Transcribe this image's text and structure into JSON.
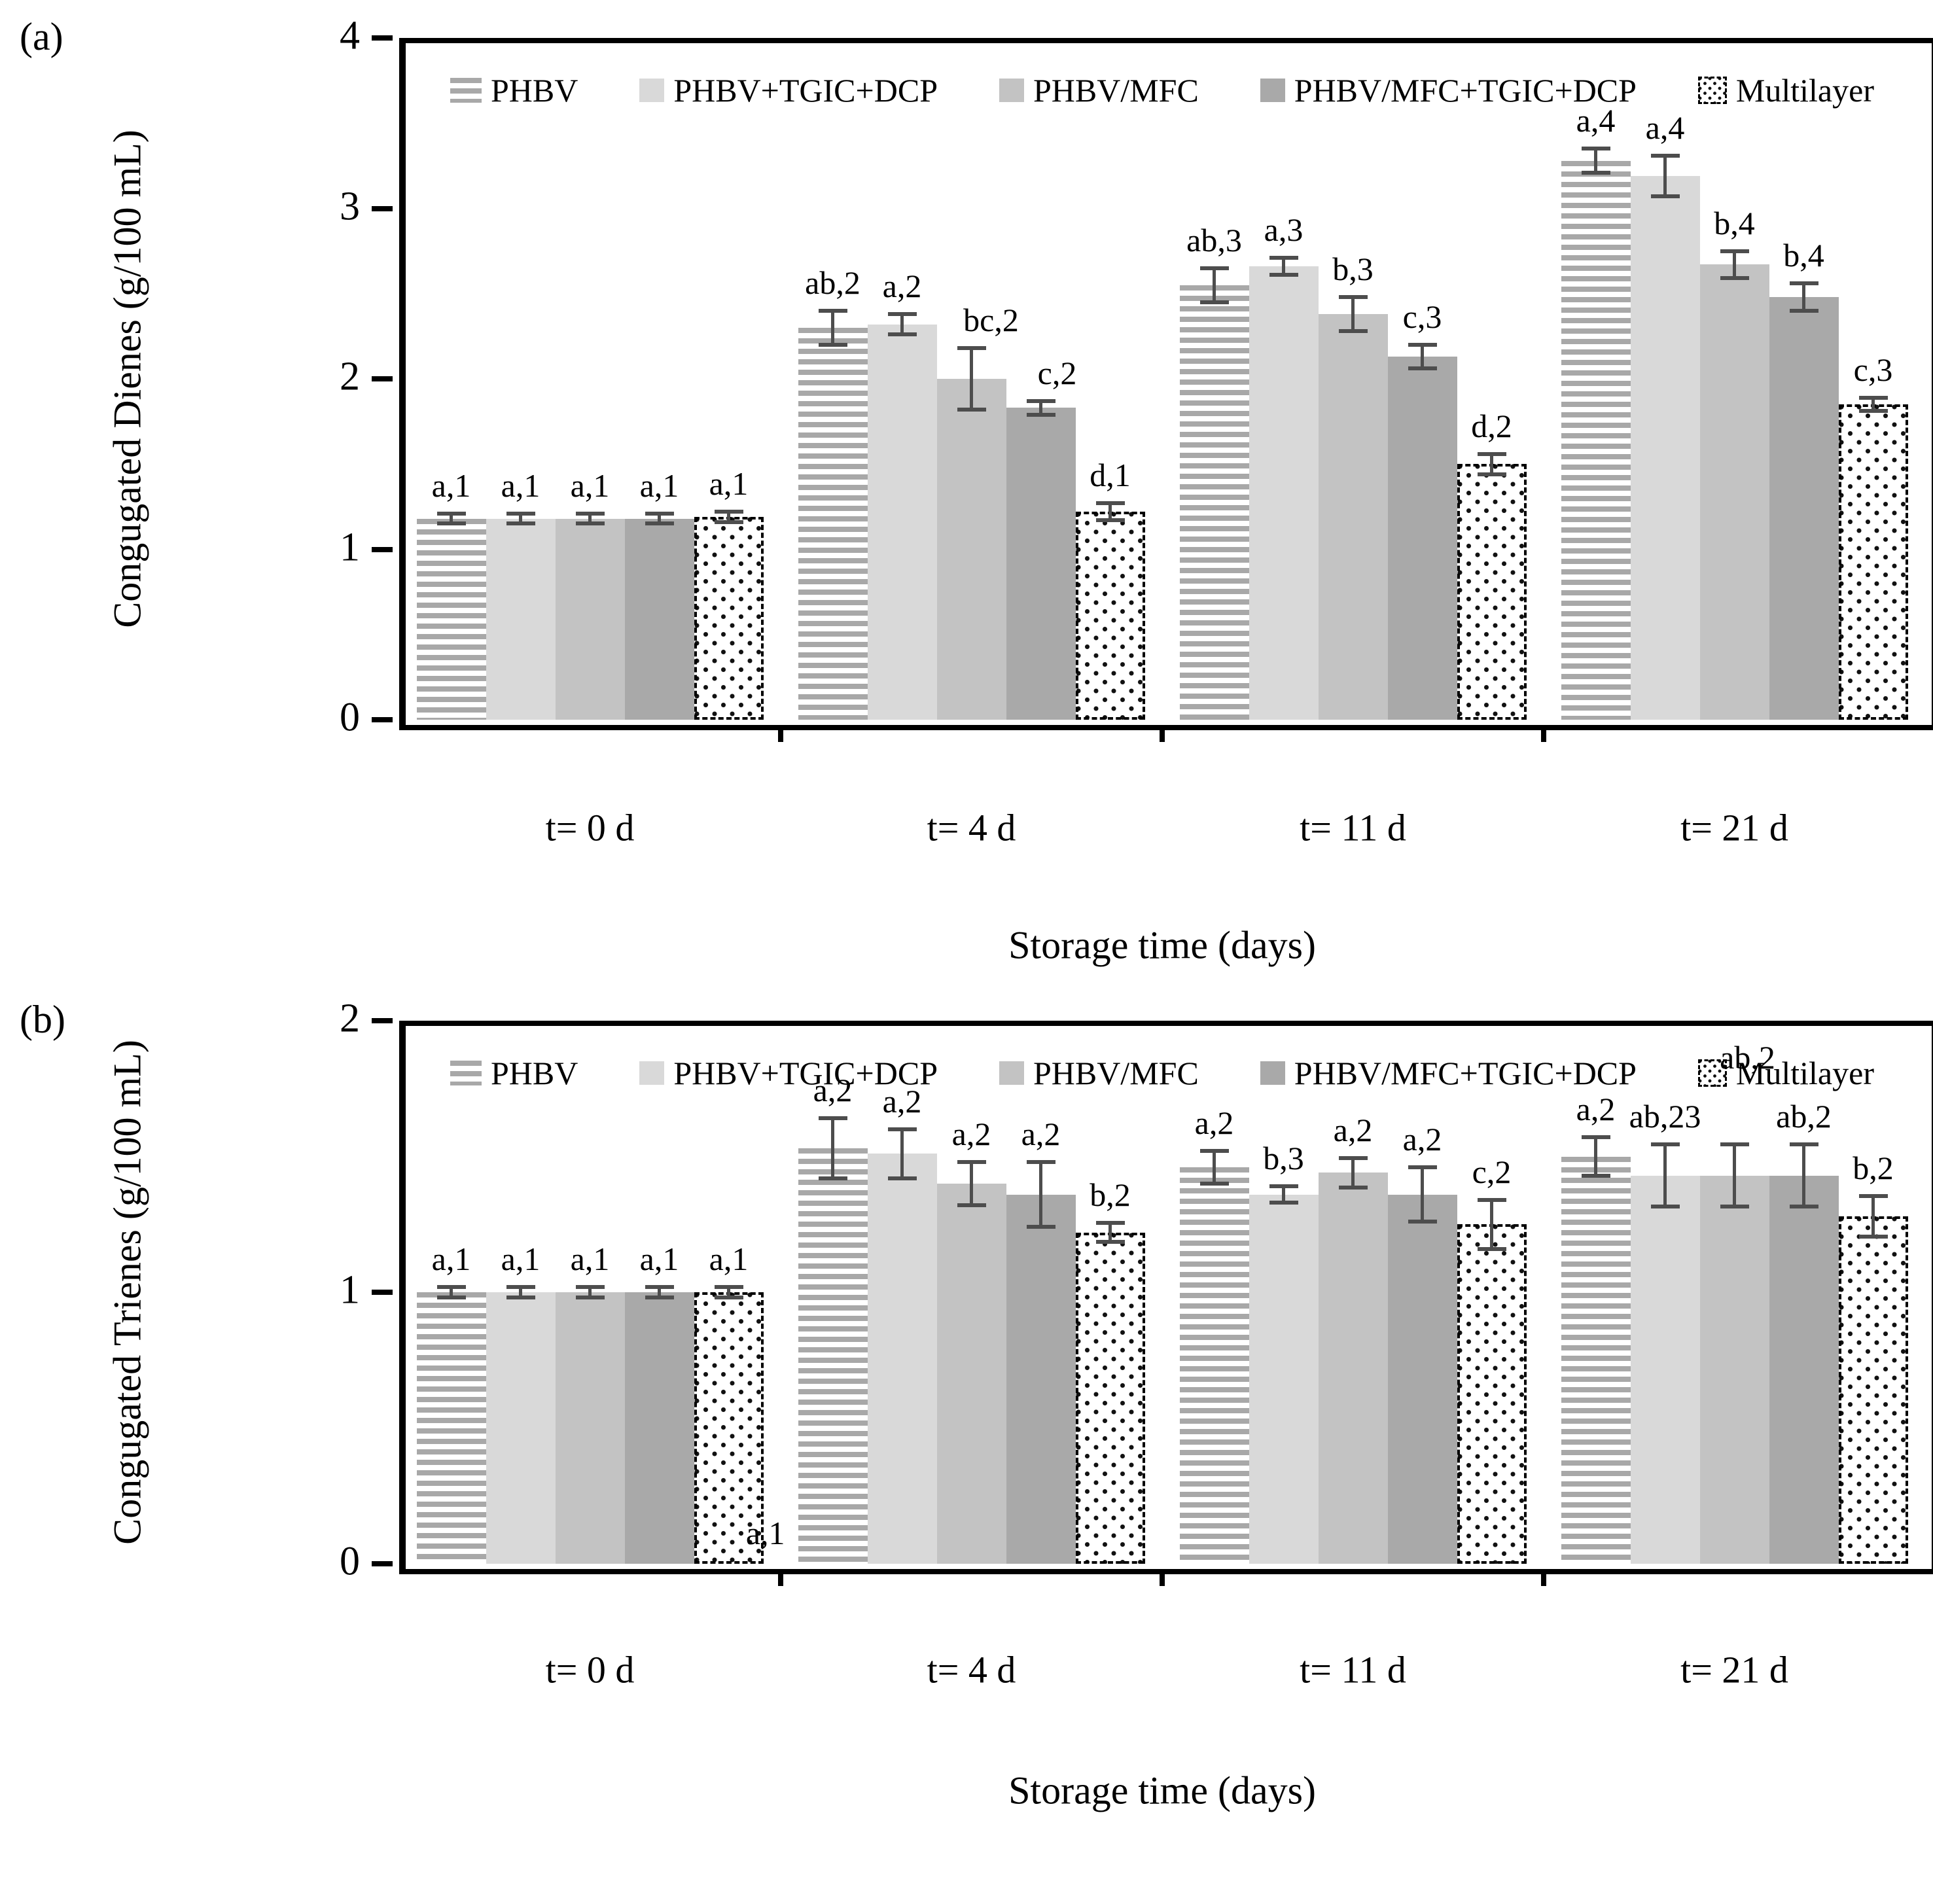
{
  "style": {
    "error_bar_color": "#4d4d4d",
    "text_color": "#000000",
    "frame_color": "#000000",
    "stripe_color": "#a8a8a8",
    "dot_color": "#111111"
  },
  "chart_data": [
    {
      "type": "bar",
      "panel_label": "(a)",
      "title": "",
      "ylabel": "Congugated Dienes (g/100 mL)",
      "xlabel": "Storage time (days)",
      "ylim": [
        0,
        4
      ],
      "yticks": [
        0,
        1,
        2,
        3,
        4
      ],
      "grid": false,
      "legend_position": "top-inside",
      "categories": [
        "t= 0 d",
        "t= 4 d",
        "t= 11 d",
        "t= 21 d"
      ],
      "series": [
        {
          "name": "PHBV",
          "pattern": "hstripes",
          "values": [
            1.18,
            2.3,
            2.55,
            3.28
          ],
          "errors": [
            0.03,
            0.1,
            0.1,
            0.07
          ],
          "labels": [
            "a,1",
            "ab,2",
            "ab,3",
            "a,4"
          ]
        },
        {
          "name": "PHBV+TGIC+DCP",
          "pattern": "solid",
          "color": "#d9d9d9",
          "values": [
            1.18,
            2.32,
            2.66,
            3.19
          ],
          "errors": [
            0.03,
            0.06,
            0.05,
            0.12
          ],
          "labels": [
            "a,1",
            "a,2",
            "a,3",
            "a,4"
          ]
        },
        {
          "name": "PHBV/MFC",
          "pattern": "solid",
          "color": "#c3c3c3",
          "values": [
            1.18,
            2.0,
            2.38,
            2.67
          ],
          "errors": [
            0.03,
            0.18,
            0.1,
            0.08
          ],
          "labels": [
            "a,1",
            "bc,2",
            "b,3",
            "b,4"
          ],
          "label_offsets": {
            "1": [
              30,
              0
            ]
          }
        },
        {
          "name": "PHBV/MFC+TGIC+DCP",
          "pattern": "solid",
          "color": "#a9a9a9",
          "values": [
            1.18,
            1.83,
            2.13,
            2.48
          ],
          "errors": [
            0.03,
            0.04,
            0.07,
            0.08
          ],
          "labels": [
            "a,1",
            "c,2",
            "c,3",
            "b,4"
          ],
          "label_offsets": {
            "1": [
              25,
              0
            ]
          }
        },
        {
          "name": "Multilayer",
          "pattern": "dots",
          "values": [
            1.19,
            1.22,
            1.5,
            1.85
          ],
          "errors": [
            0.03,
            0.05,
            0.06,
            0.04
          ],
          "labels": [
            "a,1",
            "d,1",
            "d,2",
            "c,3"
          ]
        }
      ],
      "annotations": []
    },
    {
      "type": "bar",
      "panel_label": "(b)",
      "title": "",
      "ylabel": "Congugated Trienes (g/100 mL)",
      "xlabel": "Storage time (days)",
      "ylim": [
        0,
        2
      ],
      "yticks": [
        0,
        1,
        2
      ],
      "grid": false,
      "legend_position": "top-inside",
      "categories": [
        "t= 0 d",
        "t= 4 d",
        "t= 11 d",
        "t= 21 d"
      ],
      "series": [
        {
          "name": "PHBV",
          "pattern": "hstripes",
          "values": [
            1.0,
            1.53,
            1.46,
            1.5
          ],
          "errors": [
            0.02,
            0.11,
            0.06,
            0.07
          ],
          "labels": [
            "a,1",
            "a,2",
            "a,2",
            "a,2"
          ]
        },
        {
          "name": "PHBV+TGIC+DCP",
          "pattern": "solid",
          "color": "#d9d9d9",
          "values": [
            1.0,
            1.51,
            1.36,
            1.43
          ],
          "errors": [
            0.02,
            0.09,
            0.03,
            0.115
          ],
          "labels": [
            "a,1",
            "a,2",
            "b,3",
            "ab,23"
          ]
        },
        {
          "name": "PHBV/MFC",
          "pattern": "solid",
          "color": "#c3c3c3",
          "values": [
            1.0,
            1.4,
            1.44,
            1.43
          ],
          "errors": [
            0.02,
            0.08,
            0.055,
            0.115
          ],
          "labels": [
            "a,1",
            "a,2",
            "a,2",
            "ab,2"
          ],
          "label_offsets": {
            "3": [
              20,
              -90
            ]
          }
        },
        {
          "name": "PHBV/MFC+TGIC+DCP",
          "pattern": "solid",
          "color": "#a9a9a9",
          "values": [
            1.0,
            1.36,
            1.36,
            1.43
          ],
          "errors": [
            0.02,
            0.12,
            0.1,
            0.115
          ],
          "labels": [
            "a,1",
            "a,2",
            "a,2",
            "ab,2"
          ]
        },
        {
          "name": "Multilayer",
          "pattern": "dots",
          "values": [
            1.0,
            1.22,
            1.25,
            1.28
          ],
          "errors": [
            0.02,
            0.035,
            0.09,
            0.075
          ],
          "labels": [
            "a,1",
            "b,2",
            "c,2",
            "b,2"
          ]
        }
      ],
      "annotations": [
        {
          "text": "a,1",
          "x_frac": 0.24,
          "y_value": 0.01
        }
      ]
    }
  ]
}
